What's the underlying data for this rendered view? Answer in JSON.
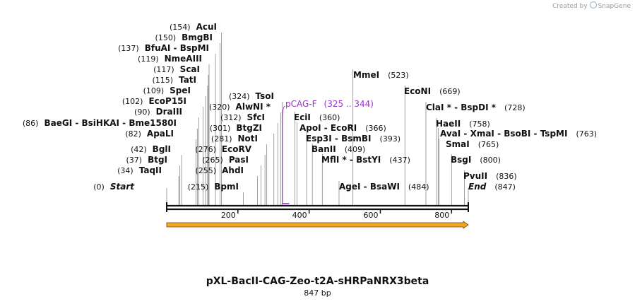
{
  "credit": {
    "prefix": "Created by",
    "brand": "SnapGene",
    "icon": "snapgene-logo-icon"
  },
  "map": {
    "title": "pXL-BacII-CAG-Zeo-t2A-sHRPaNRX3beta",
    "length_label": "847 bp",
    "length_bp": 847,
    "ticks": [
      200,
      400,
      600,
      800
    ],
    "colors": {
      "backbone": "#111111",
      "feature_arrow": "#f2a521",
      "feature_arrow_stroke": "#6b4a10",
      "primer": "#9a32cd",
      "leader": "#888888"
    }
  },
  "features": [
    {
      "name": "",
      "start": 1,
      "end": 847,
      "direction": "forward",
      "type": "arrow"
    }
  ],
  "primers": [
    {
      "name": "pCAG-F",
      "range_label": "(325 .. 344)",
      "start": 325,
      "end": 344
    }
  ],
  "sites": [
    {
      "name": "Start",
      "pos_label": "(0)",
      "position": 0,
      "side": "right",
      "italic": true
    },
    {
      "name": "TaqII",
      "pos_label": "(34)",
      "position": 34,
      "side": "left"
    },
    {
      "name": "BtgI",
      "pos_label": "(37)",
      "position": 37,
      "side": "left"
    },
    {
      "name": "BglI",
      "pos_label": "(42)",
      "position": 42,
      "side": "left"
    },
    {
      "name": "ApaLI",
      "pos_label": "(82)",
      "position": 82,
      "side": "left"
    },
    {
      "name": "BaeGI  - BsiHKAI  - Bme1580I",
      "pos_label": "(86)",
      "position": 86,
      "side": "left"
    },
    {
      "name": "DraIII",
      "pos_label": "(90)",
      "position": 90,
      "side": "left"
    },
    {
      "name": "EcoP15I",
      "pos_label": "(102)",
      "position": 102,
      "side": "left"
    },
    {
      "name": "SpeI",
      "pos_label": "(109)",
      "position": 109,
      "side": "left"
    },
    {
      "name": "TatI",
      "pos_label": "(115)",
      "position": 115,
      "side": "left"
    },
    {
      "name": "ScaI",
      "pos_label": "(117)",
      "position": 117,
      "side": "left"
    },
    {
      "name": "NmeAIII",
      "pos_label": "(119)",
      "position": 119,
      "side": "left"
    },
    {
      "name": "BfuAI  - BspMI",
      "pos_label": "(137)",
      "position": 137,
      "side": "left"
    },
    {
      "name": "BmgBI",
      "pos_label": "(150)",
      "position": 150,
      "side": "left"
    },
    {
      "name": "AcuI",
      "pos_label": "(154)",
      "position": 154,
      "side": "left"
    },
    {
      "name": "BpmI",
      "pos_label": "(215)",
      "position": 215,
      "side": "left"
    },
    {
      "name": "AhdI",
      "pos_label": "(255)",
      "position": 255,
      "side": "left"
    },
    {
      "name": "PasI",
      "pos_label": "(265)",
      "position": 265,
      "side": "left"
    },
    {
      "name": "EcoRV",
      "pos_label": "(276)",
      "position": 276,
      "side": "left"
    },
    {
      "name": "NotI",
      "pos_label": "(281)",
      "position": 281,
      "side": "left"
    },
    {
      "name": "BtgZI",
      "pos_label": "(301)",
      "position": 301,
      "side": "left"
    },
    {
      "name": "SfcI",
      "pos_label": "(312)",
      "position": 312,
      "side": "left"
    },
    {
      "name": "AlwNI *",
      "pos_label": "(320)",
      "position": 320,
      "side": "left"
    },
    {
      "name": "TsoI",
      "pos_label": "(324)",
      "position": 324,
      "side": "left"
    },
    {
      "name": "EciI",
      "pos_label": "(360)",
      "position": 360,
      "side": "right"
    },
    {
      "name": "ApoI  - EcoRI",
      "pos_label": "(366)",
      "position": 366,
      "side": "right"
    },
    {
      "name": "Esp3I  - BsmBI",
      "pos_label": "(393)",
      "position": 393,
      "side": "right"
    },
    {
      "name": "BanII",
      "pos_label": "(409)",
      "position": 409,
      "side": "right"
    },
    {
      "name": "MflI *  - BstYI",
      "pos_label": "(437)",
      "position": 437,
      "side": "right"
    },
    {
      "name": "AgeI  - BsaWI",
      "pos_label": "(484)",
      "position": 484,
      "side": "right"
    },
    {
      "name": "MmeI",
      "pos_label": "(523)",
      "position": 523,
      "side": "right"
    },
    {
      "name": "EcoNI",
      "pos_label": "(669)",
      "position": 669,
      "side": "right"
    },
    {
      "name": "ClaI *  - BspDI *",
      "pos_label": "(728)",
      "position": 728,
      "side": "right"
    },
    {
      "name": "HaeII",
      "pos_label": "(758)",
      "position": 758,
      "side": "right"
    },
    {
      "name": "AvaI  - XmaI  - BsoBI  - TspMI",
      "pos_label": "(763)",
      "position": 763,
      "side": "right"
    },
    {
      "name": "SmaI",
      "pos_label": "(765)",
      "position": 765,
      "side": "right"
    },
    {
      "name": "BsgI",
      "pos_label": "(800)",
      "position": 800,
      "side": "right"
    },
    {
      "name": "PvuII",
      "pos_label": "(836)",
      "position": 836,
      "side": "right"
    },
    {
      "name": "End",
      "pos_label": "(847)",
      "position": 847,
      "side": "right",
      "italic": true
    }
  ]
}
